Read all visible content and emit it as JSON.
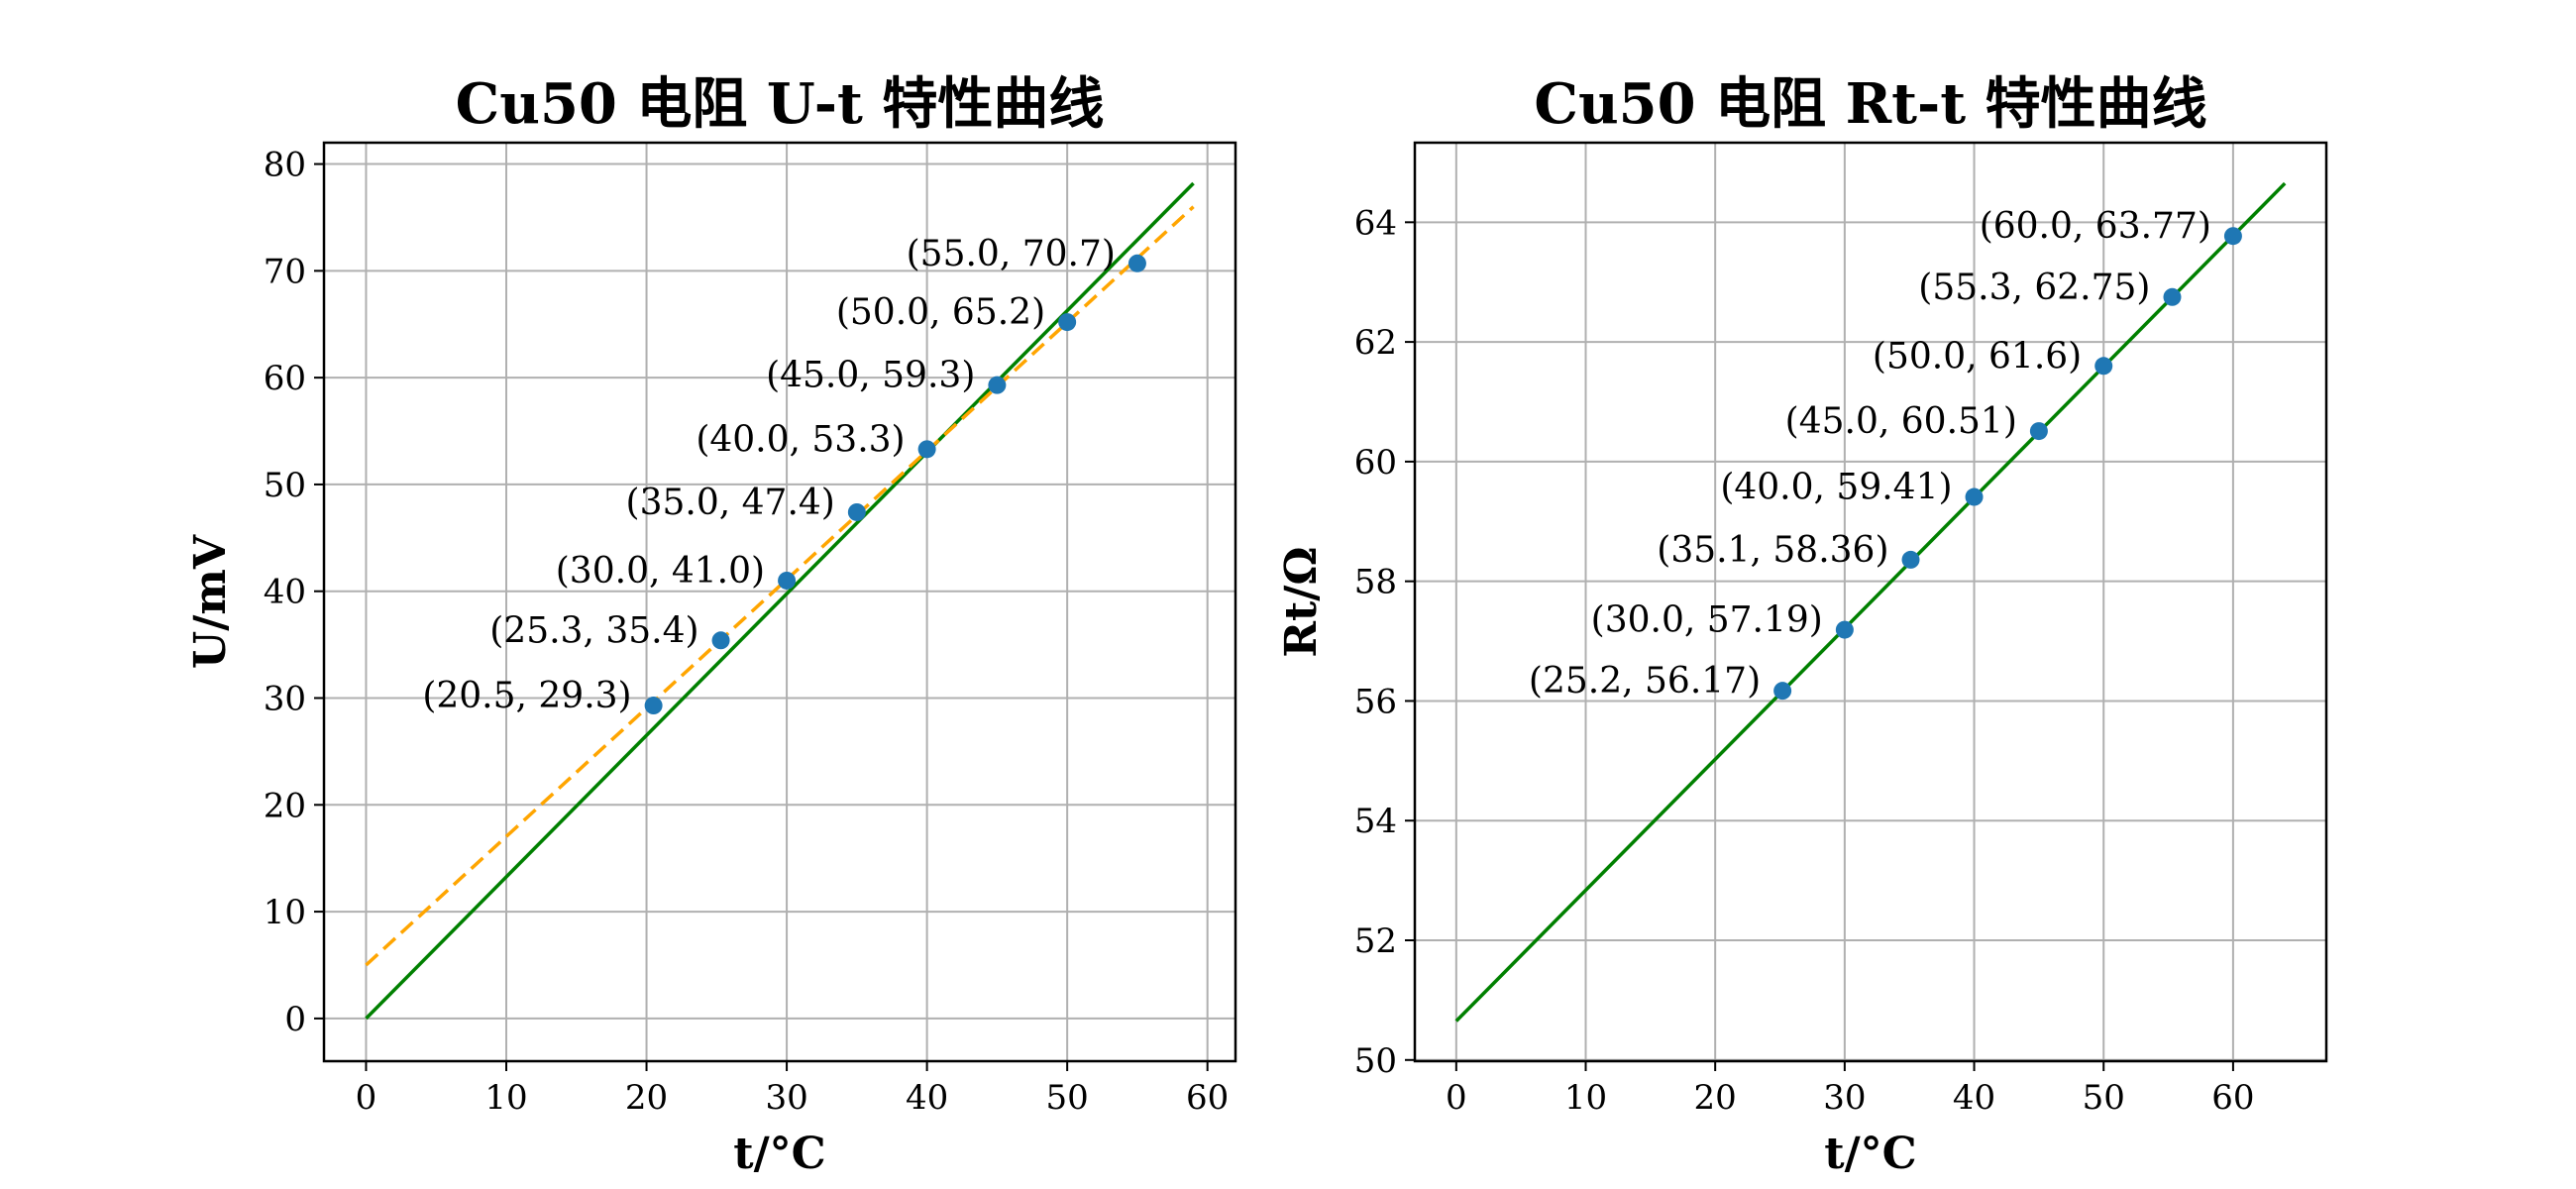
{
  "chart_data": [
    {
      "type": "scatter",
      "title": "Cu50 电阻 U-t 特性曲线",
      "xlabel": "t/°C",
      "ylabel": "U/mV",
      "xlim": [
        -3,
        62
      ],
      "ylim": [
        -4,
        82
      ],
      "xticks": [
        0,
        10,
        20,
        30,
        40,
        50,
        60
      ],
      "yticks": [
        0,
        10,
        20,
        30,
        40,
        50,
        60,
        70,
        80
      ],
      "grid": true,
      "points": [
        {
          "x": 20.5,
          "y": 29.3,
          "label": "(20.5, 29.3)"
        },
        {
          "x": 25.3,
          "y": 35.4,
          "label": "(25.3, 35.4)"
        },
        {
          "x": 30.0,
          "y": 41.0,
          "label": "(30.0, 41.0)"
        },
        {
          "x": 35.0,
          "y": 47.4,
          "label": "(35.0, 47.4)"
        },
        {
          "x": 40.0,
          "y": 53.3,
          "label": "(40.0, 53.3)"
        },
        {
          "x": 45.0,
          "y": 59.3,
          "label": "(45.0, 59.3)"
        },
        {
          "x": 50.0,
          "y": 65.2,
          "label": "(50.0, 65.2)"
        },
        {
          "x": 55.0,
          "y": 70.7,
          "label": "(55.0, 70.7)"
        }
      ],
      "lines": [
        {
          "style": "solid",
          "color": "#008000",
          "x": [
            0,
            59
          ],
          "y": [
            0,
            78.2
          ]
        },
        {
          "style": "dashed",
          "color": "#ffa500",
          "x": [
            0,
            59
          ],
          "y": [
            5.0,
            76.0
          ]
        }
      ],
      "marker_color": "#1f77b4"
    },
    {
      "type": "scatter",
      "title": "Cu50 电阻 Rt-t 特性曲线",
      "xlabel": "t/°C",
      "ylabel": "Rt/Ω",
      "xlim": [
        -3.2,
        67.2
      ],
      "ylim": [
        49.98,
        65.33
      ],
      "xticks": [
        0,
        10,
        20,
        30,
        40,
        50,
        60
      ],
      "yticks": [
        50,
        52,
        54,
        56,
        58,
        60,
        62,
        64
      ],
      "grid": true,
      "points": [
        {
          "x": 25.2,
          "y": 56.17,
          "label": "(25.2, 56.17)"
        },
        {
          "x": 30.0,
          "y": 57.19,
          "label": "(30.0, 57.19)"
        },
        {
          "x": 35.1,
          "y": 58.36,
          "label": "(35.1, 58.36)"
        },
        {
          "x": 40.0,
          "y": 59.41,
          "label": "(40.0, 59.41)"
        },
        {
          "x": 45.0,
          "y": 60.51,
          "label": "(45.0, 60.51)"
        },
        {
          "x": 50.0,
          "y": 61.6,
          "label": "(50.0, 61.6)"
        },
        {
          "x": 55.3,
          "y": 62.75,
          "label": "(55.3, 62.75)"
        },
        {
          "x": 60.0,
          "y": 63.77,
          "label": "(60.0, 63.77)"
        }
      ],
      "lines": [
        {
          "style": "solid",
          "color": "#008000",
          "x": [
            0,
            64
          ],
          "y": [
            50.65,
            64.65
          ]
        }
      ],
      "marker_color": "#1f77b4"
    }
  ]
}
